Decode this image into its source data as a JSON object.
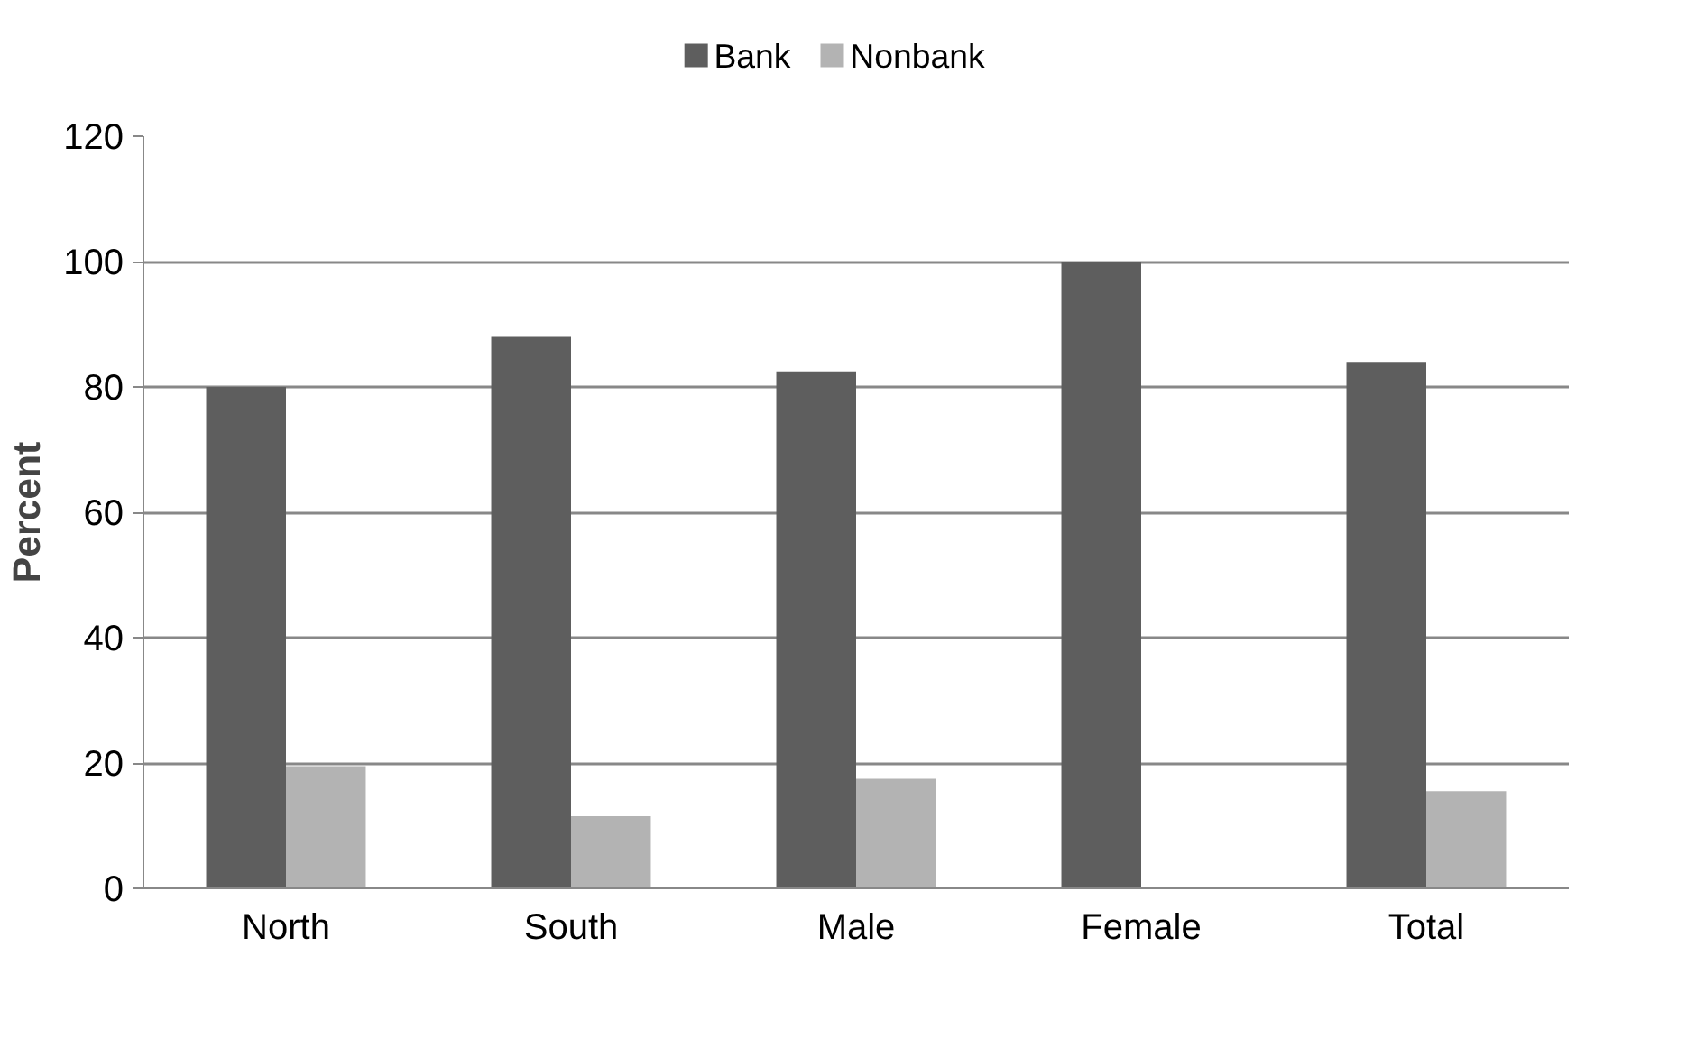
{
  "chart_data": {
    "type": "bar",
    "ylabel": "Percent",
    "categories": [
      "North",
      "South",
      "Male",
      "Female",
      "Total"
    ],
    "series": [
      {
        "name": "Bank",
        "color": "#5e5e5e",
        "values": [
          80,
          88,
          82.5,
          100,
          84
        ]
      },
      {
        "name": "Nonbank",
        "color": "#b3b3b3",
        "values": [
          19.5,
          11.5,
          17.5,
          0,
          15.5
        ]
      }
    ],
    "ylim": [
      0,
      120
    ],
    "yticks": [
      0,
      20,
      40,
      60,
      80,
      100,
      120
    ],
    "grid": "y",
    "legend": "top"
  }
}
